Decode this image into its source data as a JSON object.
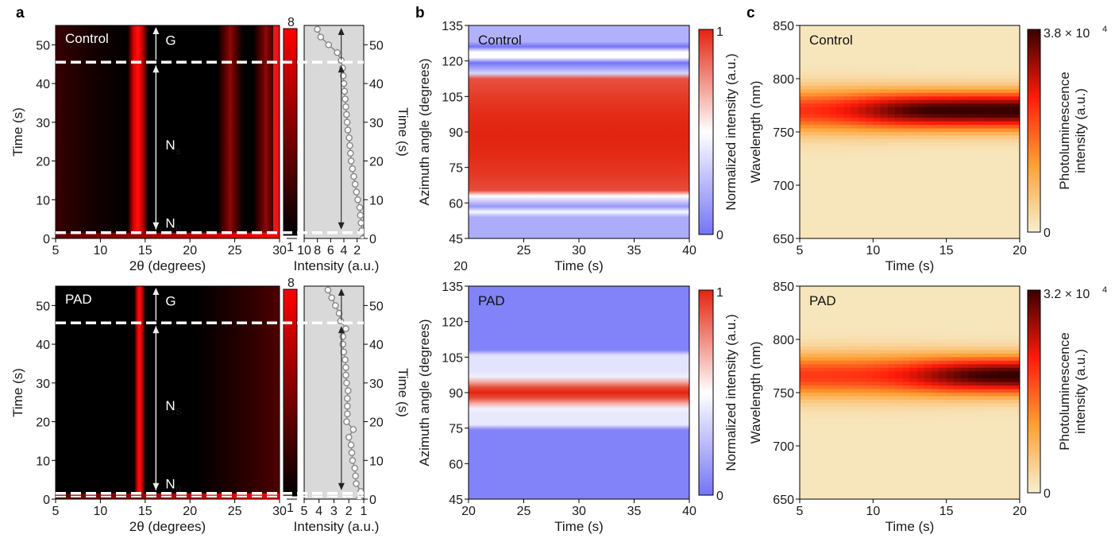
{
  "figure": {
    "panels": [
      "a",
      "b",
      "c"
    ]
  },
  "chart_data": [
    {
      "id": "a-control",
      "type": "heatmap",
      "panel": "a",
      "label": "Control",
      "xlabel": "2θ (degrees)",
      "ylabel": "Time (s)",
      "xlim": [
        5,
        30
      ],
      "ylim": [
        0,
        55
      ],
      "xticks": [
        5,
        10,
        15,
        20,
        25,
        30
      ],
      "yticks": [
        0,
        10,
        20,
        30,
        40,
        50
      ],
      "colorbar": {
        "min_label": "1",
        "max_label": "8",
        "range": [
          1,
          8
        ],
        "colors": [
          "#000000",
          "#ff0000"
        ]
      },
      "peaks_2theta": [
        14.2,
        24.5,
        28.5
      ],
      "stage_lines_time": [
        1.5,
        45.5
      ],
      "stages": [
        {
          "label": "G",
          "from": 45.5,
          "to": 55
        },
        {
          "label": "N",
          "sub": "s",
          "from": 1.5,
          "to": 45.5
        },
        {
          "label": "N",
          "sub": "0",
          "at": 4
        }
      ],
      "side_profile": {
        "xlabel": "Intensity (a.u.)",
        "ylabel": "Time (s)",
        "xlim": [
          10,
          1
        ],
        "xticks": [
          10,
          8,
          6,
          4,
          2
        ],
        "yticks": [
          0,
          10,
          20,
          30,
          40,
          50
        ],
        "time": [
          0,
          2,
          4,
          6,
          8,
          10,
          12,
          14,
          16,
          18,
          20,
          22,
          24,
          26,
          28,
          30,
          32,
          34,
          36,
          38,
          40,
          42,
          44,
          46,
          48,
          50,
          52,
          54
        ],
        "intensity": [
          1.1,
          1.3,
          1.4,
          1.5,
          1.6,
          1.9,
          2.1,
          2.3,
          2.5,
          2.7,
          2.9,
          3.0,
          3.1,
          3.2,
          3.4,
          3.5,
          3.6,
          3.7,
          3.8,
          3.9,
          4.0,
          4.1,
          4.2,
          4.4,
          5.0,
          6.3,
          7.5,
          8.0
        ]
      }
    },
    {
      "id": "a-pad",
      "type": "heatmap",
      "panel": "a",
      "label": "PAD",
      "xlabel": "2θ (degrees)",
      "ylabel": "Time (s)",
      "xlim": [
        5,
        30
      ],
      "ylim": [
        0,
        55
      ],
      "xticks": [
        5,
        10,
        15,
        20,
        25,
        30
      ],
      "yticks": [
        0,
        10,
        20,
        30,
        40,
        50
      ],
      "colorbar": {
        "min_label": "1",
        "max_label": "8",
        "range": [
          1,
          8
        ],
        "colors": [
          "#000000",
          "#ff0000"
        ]
      },
      "peaks_2theta": [
        14.4
      ],
      "stage_lines_time": [
        1.5,
        45.5
      ],
      "stages": [
        {
          "label": "G",
          "from": 45.5,
          "to": 55
        },
        {
          "label": "N",
          "sub": "S",
          "from": 1.5,
          "to": 45.5
        },
        {
          "label": "N",
          "sub": "0",
          "at": 4
        }
      ],
      "side_profile": {
        "xlabel": "Intensity (a.u.)",
        "ylabel": "Time (s)",
        "xlim": [
          5,
          1
        ],
        "xticks": [
          5,
          4,
          3,
          2,
          1
        ],
        "yticks": [
          0,
          10,
          20,
          30,
          40,
          50
        ],
        "time": [
          0,
          2,
          4,
          6,
          8,
          10,
          12,
          14,
          16,
          18,
          20,
          22,
          24,
          26,
          28,
          30,
          32,
          34,
          36,
          38,
          40,
          42,
          44,
          46,
          48,
          50,
          52,
          54
        ],
        "intensity": [
          1.3,
          1.2,
          1.5,
          1.55,
          1.6,
          1.75,
          1.8,
          1.85,
          2.0,
          1.7,
          2.15,
          2.1,
          2.1,
          2.1,
          2.05,
          2.15,
          2.2,
          2.2,
          2.25,
          2.35,
          2.4,
          2.4,
          2.2,
          2.55,
          2.65,
          2.9,
          3.15,
          3.4
        ]
      }
    },
    {
      "id": "b-control",
      "type": "heatmap",
      "panel": "b",
      "label": "Control",
      "xlabel": "Time (s)",
      "ylabel": "Azimuth angle (degrees)",
      "xlim": [
        20,
        40
      ],
      "ylim": [
        45,
        135
      ],
      "xticks": [
        25,
        30,
        35,
        40
      ],
      "extra_xlabel": "20",
      "yticks": [
        45,
        60,
        75,
        90,
        105,
        120,
        135
      ],
      "colorbar": {
        "label": "Normalized intensity (a.u.)",
        "min_label": "0",
        "max_label": "1",
        "range": [
          0,
          1
        ],
        "colors": [
          "#7474f8",
          "#ffffff",
          "#e22510"
        ]
      },
      "band_center_deg": 88,
      "band_half_width_deg": 31,
      "peak_value": 1.0
    },
    {
      "id": "b-pad",
      "type": "heatmap",
      "panel": "b",
      "label": "PAD",
      "xlabel": "Time (s)",
      "ylabel": "Azimuth angle (degrees)",
      "xlim": [
        20,
        40
      ],
      "ylim": [
        45,
        135
      ],
      "xticks": [
        20,
        25,
        30,
        35,
        40
      ],
      "yticks": [
        45,
        60,
        75,
        90,
        105,
        120,
        135
      ],
      "colorbar": {
        "label": "Normalized intensity (a.u.)",
        "min_label": "0",
        "max_label": "1",
        "range": [
          0,
          1
        ],
        "colors": [
          "#7474f8",
          "#ffffff",
          "#e22510"
        ]
      },
      "band_center_deg": 90,
      "band_half_width_deg": 8,
      "peak_value": 1.0
    },
    {
      "id": "c-control",
      "type": "heatmap",
      "panel": "c",
      "label": "Control",
      "xlabel": "Time (s)",
      "ylabel": "Wavelength (nm)",
      "xlim": [
        5,
        20
      ],
      "ylim": [
        650,
        850
      ],
      "xticks": [
        5,
        10,
        15,
        20
      ],
      "yticks": [
        650,
        700,
        750,
        800,
        850
      ],
      "colorbar": {
        "label_line1": "Photoluminescence",
        "label_line2": "intensity (a.u.)",
        "min_label": "0",
        "max_label": "3.8 × 10",
        "max_exp": "4",
        "range": [
          0,
          38000
        ],
        "colors": [
          "#f6efcf",
          "#ffa032",
          "#ff1a0a",
          "#3a0000"
        ]
      },
      "peak_wavelength_nm": 770,
      "peak_intensity": 38000,
      "max_time_s": 14
    },
    {
      "id": "c-pad",
      "type": "heatmap",
      "panel": "c",
      "label": "PAD",
      "xlabel": "Time (s)",
      "ylabel": "Wavelength (nm)",
      "xlim": [
        5,
        20
      ],
      "ylim": [
        650,
        850
      ],
      "xticks": [
        5,
        10,
        15,
        20
      ],
      "yticks": [
        650,
        700,
        750,
        800,
        850
      ],
      "colorbar": {
        "label_line1": "Photoluminescence",
        "label_line2": "intensity (a.u.)",
        "min_label": "0",
        "max_label": "3.2 × 10",
        "max_exp": "4",
        "range": [
          0,
          32000
        ],
        "colors": [
          "#f6efcf",
          "#ffa032",
          "#ff1a0a",
          "#3a0000"
        ]
      },
      "peak_wavelength_nm": 766,
      "peak_intensity": 32000,
      "max_time_s": 18
    }
  ]
}
